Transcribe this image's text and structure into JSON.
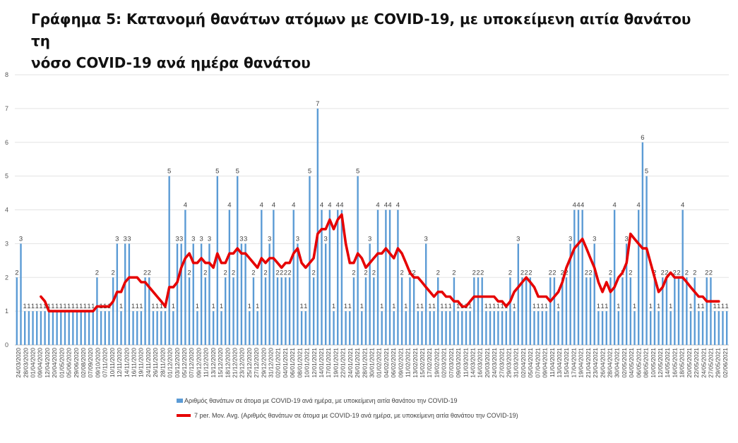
{
  "title": {
    "line1": "Γράφημα 5: Κατανομή θανάτων ατόμων με COVID-19, με υποκείμενη αιτία θανάτου τη",
    "line2": "νόσο COVID-19 ανά ημέρα θανάτου"
  },
  "colors": {
    "bar": "#5b9bd5",
    "line": "#e60000",
    "grid": "#e3e3e3",
    "axis": "#bfbfbf"
  },
  "legend": {
    "bar_label": "Αριθμός θανάτων σε άτομα με COVID-19 ανά ημέρα, με υποκείμενη αιτία θανάτου την COVID-19",
    "line_label": "7 per. Mov. Avg. (Αριθμός θανάτων σε άτομα με COVID-19 ανά ημέρα, με υποκείμενη αιτία θανάτου την COVID-19)"
  },
  "chart_data": {
    "type": "bar",
    "title": "",
    "xlabel": "",
    "ylabel": "",
    "ylim": [
      0,
      8
    ],
    "yticks": [
      "0",
      "1",
      "2",
      "3",
      "4",
      "5",
      "6",
      "7",
      "8"
    ],
    "grid": true,
    "legend_position": "bottom",
    "x_tick_labels": [
      "24/03/2020",
      "28/03/2020",
      "01/04/2020",
      "09/04/2020",
      "12/04/2020",
      "20/04/2020",
      "01/05/2020",
      "05/06/2020",
      "29/06/2020",
      "02/08/2020",
      "07/09/2020",
      "09/10/2020",
      "07/11/2020",
      "10/11/2020",
      "12/11/2020",
      "14/11/2020",
      "16/11/2020",
      "19/11/2020",
      "24/11/2020",
      "26/11/2020",
      "28/11/2020",
      "01/12/2020",
      "03/12/2020",
      "05/12/2020",
      "07/12/2020",
      "09/12/2020",
      "11/12/2020",
      "13/12/2020",
      "15/12/2020",
      "18/12/2020",
      "21/12/2020",
      "23/12/2020",
      "25/12/2020",
      "27/12/2020",
      "29/12/2020",
      "31/12/2020",
      "02/01/2021",
      "04/01/2021",
      "06/01/2021",
      "08/01/2021",
      "10/01/2021",
      "12/01/2021",
      "14/01/2021",
      "17/01/2021",
      "19/01/2021",
      "22/01/2021",
      "24/01/2021",
      "26/01/2021",
      "28/01/2021",
      "30/01/2021",
      "01/02/2021",
      "04/02/2021",
      "06/02/2021",
      "09/02/2021",
      "11/02/2021",
      "13/02/2021",
      "15/02/2021",
      "17/02/2021",
      "19/02/2021",
      "02/03/2021",
      "07/03/2021",
      "09/03/2021",
      "11/03/2021",
      "14/03/2021",
      "16/03/2021",
      "20/03/2021",
      "24/03/2021",
      "27/03/2021",
      "29/03/2021",
      "31/03/2021",
      "02/04/2021",
      "05/04/2021",
      "07/04/2021",
      "09/04/2021",
      "11/04/2021",
      "13/04/2021",
      "15/04/2021",
      "17/04/2021",
      "19/04/2021",
      "21/04/2021",
      "23/04/2021",
      "26/04/2021",
      "28/04/2021",
      "30/04/2021",
      "02/05/2021",
      "04/05/2021",
      "06/05/2021",
      "08/05/2021",
      "10/05/2021",
      "12/05/2021",
      "14/05/2021",
      "16/05/2021",
      "18/05/2021",
      "20/05/2021",
      "22/05/2021",
      "24/05/2021",
      "27/05/2021",
      "29/05/2021",
      "02/06/2021"
    ],
    "series": [
      {
        "name": "Αριθμός θανάτων σε άτομα με COVID-19 ανά ημέρα, με υποκείμενη αιτία θανάτου την COVID-19",
        "values": [
          2,
          3,
          1,
          1,
          1,
          1,
          1,
          1,
          1,
          1,
          1,
          1,
          1,
          1,
          1,
          1,
          1,
          1,
          1,
          1,
          2,
          1,
          1,
          1,
          2,
          3,
          1,
          3,
          3,
          1,
          1,
          1,
          2,
          2,
          1,
          1,
          1,
          1,
          5,
          1,
          3,
          3,
          4,
          2,
          3,
          1,
          3,
          2,
          3,
          1,
          5,
          1,
          2,
          4,
          2,
          5,
          3,
          3,
          1,
          2,
          1,
          4,
          2,
          3,
          4,
          2,
          2,
          2,
          2,
          4,
          3,
          1,
          1,
          5,
          2,
          7,
          4,
          3,
          4,
          1,
          4,
          4,
          1,
          1,
          2,
          5,
          1,
          2,
          3,
          2,
          4,
          1,
          4,
          4,
          1,
          4,
          2,
          1,
          2,
          2,
          1,
          1,
          3,
          1,
          1,
          2,
          1,
          1,
          1,
          2,
          1,
          1,
          1,
          1,
          2,
          2,
          2,
          1,
          1,
          1,
          1,
          1,
          1,
          2,
          1,
          3,
          2,
          2,
          2,
          1,
          1,
          1,
          1,
          2,
          2,
          1,
          2,
          2,
          3,
          4,
          4,
          4,
          2,
          2,
          3,
          1,
          1,
          1,
          2,
          4,
          1,
          2,
          3,
          2,
          1,
          4,
          6,
          5,
          1,
          2,
          1,
          2,
          2,
          1,
          2,
          2,
          4,
          2,
          1,
          2,
          1,
          1,
          2,
          2,
          1,
          1,
          1,
          1
        ]
      },
      {
        "name": "7 per. Mov. Avg. (Αριθμός θανάτων σε άτομα με COVID-19 ανά ημέρα, με υποκείμενη αιτία θανάτου την COVID-19)",
        "type": "line",
        "values": [
          null,
          null,
          null,
          null,
          null,
          null,
          1.43,
          1.29,
          1.0,
          1.0,
          1.0,
          1.0,
          1.0,
          1.0,
          1.0,
          1.0,
          1.0,
          1.0,
          1.0,
          1.0,
          1.14,
          1.14,
          1.14,
          1.14,
          1.29,
          1.57,
          1.57,
          1.86,
          2.0,
          2.0,
          2.0,
          1.86,
          1.86,
          1.71,
          1.57,
          1.43,
          1.29,
          1.14,
          1.71,
          1.71,
          1.86,
          2.29,
          2.57,
          2.71,
          2.43,
          2.43,
          2.57,
          2.43,
          2.43,
          2.29,
          2.71,
          2.43,
          2.43,
          2.71,
          2.71,
          2.86,
          2.71,
          2.71,
          2.57,
          2.43,
          2.29,
          2.57,
          2.43,
          2.57,
          2.57,
          2.43,
          2.29,
          2.43,
          2.43,
          2.71,
          2.86,
          2.43,
          2.29,
          2.43,
          2.57,
          3.29,
          3.43,
          3.43,
          3.71,
          3.43,
          3.71,
          3.86,
          3.0,
          2.43,
          2.43,
          2.71,
          2.57,
          2.29,
          2.43,
          2.57,
          2.71,
          2.71,
          2.86,
          2.71,
          2.57,
          2.86,
          2.71,
          2.43,
          2.14,
          2.0,
          2.0,
          1.86,
          1.71,
          1.57,
          1.43,
          1.57,
          1.57,
          1.43,
          1.43,
          1.29,
          1.29,
          1.14,
          1.14,
          1.29,
          1.43,
          1.43,
          1.43,
          1.43,
          1.43,
          1.43,
          1.29,
          1.29,
          1.14,
          1.29,
          1.57,
          1.71,
          1.86,
          2.0,
          1.86,
          1.71,
          1.43,
          1.43,
          1.43,
          1.29,
          1.43,
          1.57,
          1.86,
          2.29,
          2.57,
          2.86,
          3.0,
          3.14,
          2.86,
          2.57,
          2.29,
          1.86,
          1.57,
          1.86,
          1.57,
          1.71,
          2.0,
          2.14,
          2.43,
          3.29,
          3.14,
          3.0,
          2.86,
          2.86,
          2.43,
          2.0,
          1.57,
          1.71,
          2.0,
          2.14,
          2.0,
          2.0,
          2.0,
          1.86,
          1.71,
          1.57,
          1.43,
          1.43,
          1.29,
          1.29,
          1.29,
          1.29
        ]
      }
    ]
  }
}
